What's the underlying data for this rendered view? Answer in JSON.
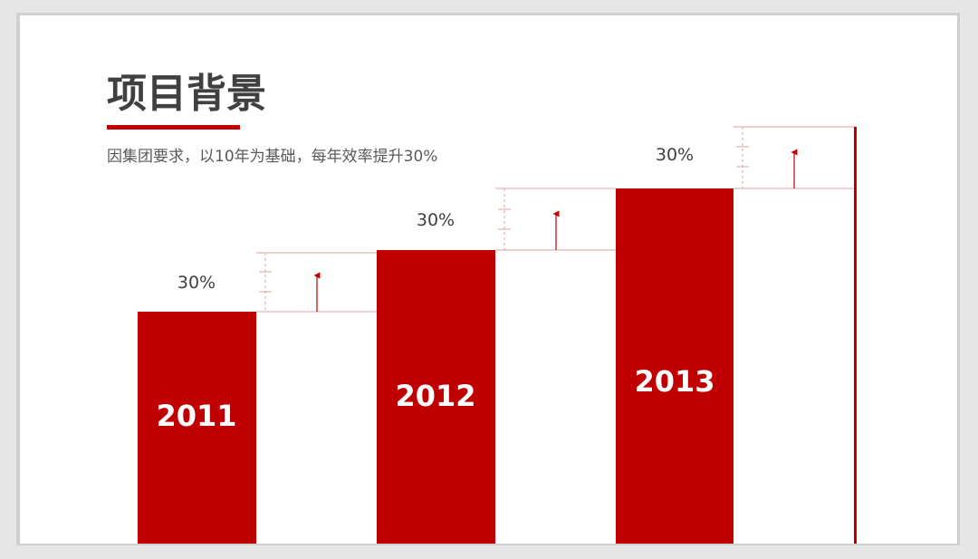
{
  "header": {
    "title": "项目背景",
    "subtitle": "因集团要求，以10年为基础，每年效率提升30%"
  },
  "steps": [
    {
      "label": "2011",
      "increase": "30%"
    },
    {
      "label": "2012",
      "increase": "30%"
    },
    {
      "label": "2013",
      "increase": "30%"
    }
  ]
}
